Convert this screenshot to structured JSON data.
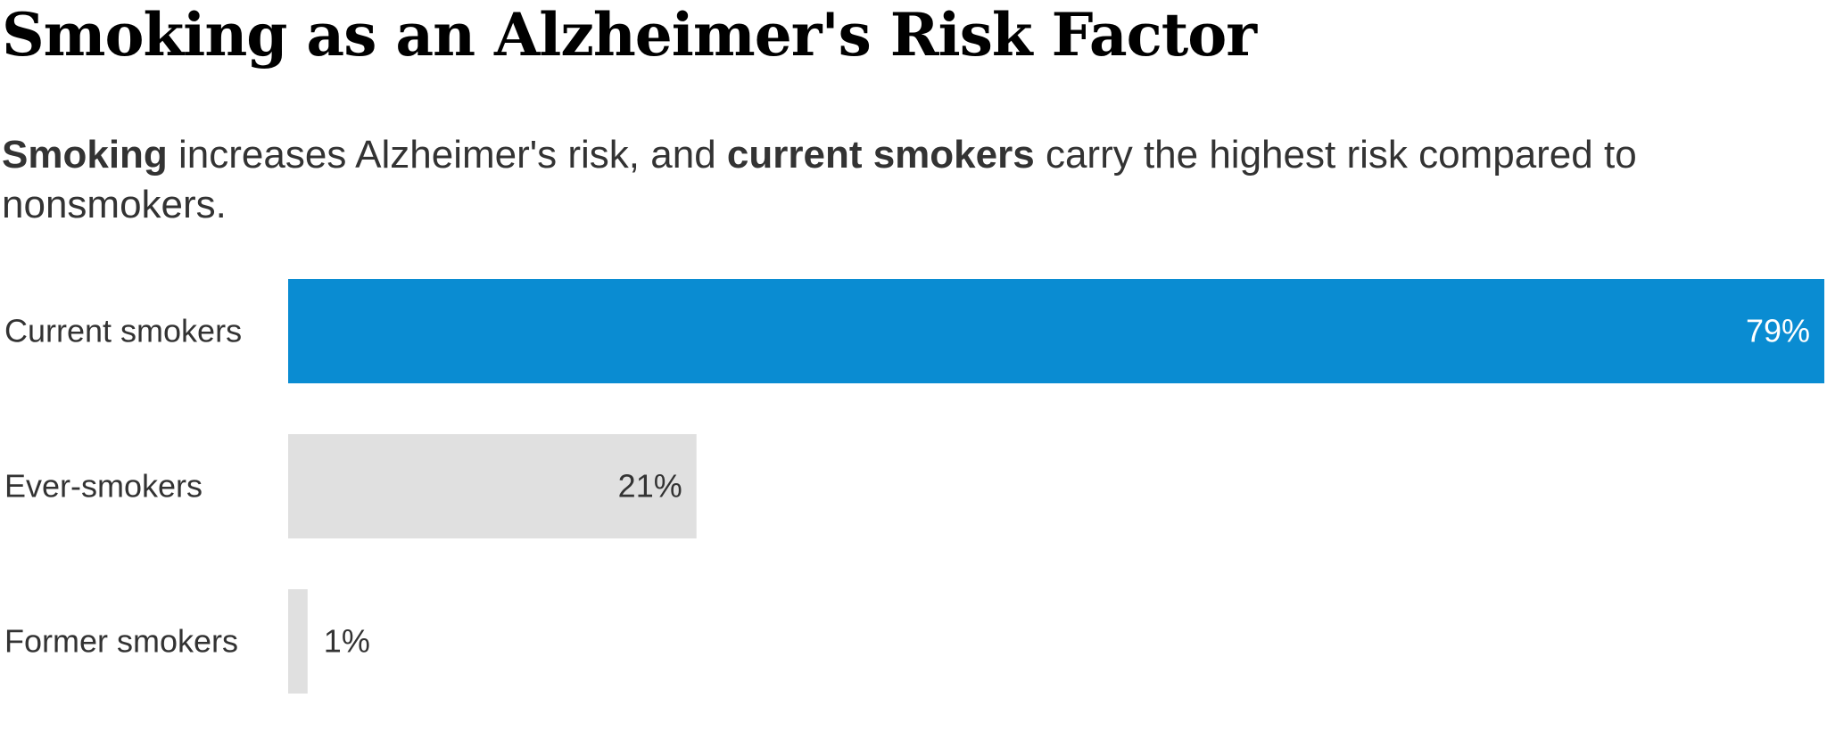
{
  "title": "Smoking as an Alzheimer's Risk Factor",
  "subtitle": {
    "parts": [
      {
        "text": "Smoking",
        "bold": true
      },
      {
        "text": " increases Alzheimer's risk, and ",
        "bold": false
      },
      {
        "text": "current smokers",
        "bold": true
      },
      {
        "text": " carry the highest risk compared to nonsmokers.",
        "bold": false
      }
    ]
  },
  "chart_data": {
    "type": "bar",
    "orientation": "horizontal",
    "categories": [
      "Current smokers",
      "Ever-smokers",
      "Former smokers"
    ],
    "values": [
      79,
      21,
      1
    ],
    "labels": [
      "79%",
      "21%",
      "1%"
    ],
    "unit": "%",
    "xlim": [
      0,
      79
    ],
    "grid": false,
    "highlight_color": "#0a8cd2",
    "base_color": "#e0e0e0",
    "colors": [
      "#0a8cd2",
      "#e0e0e0",
      "#e0e0e0"
    ]
  }
}
